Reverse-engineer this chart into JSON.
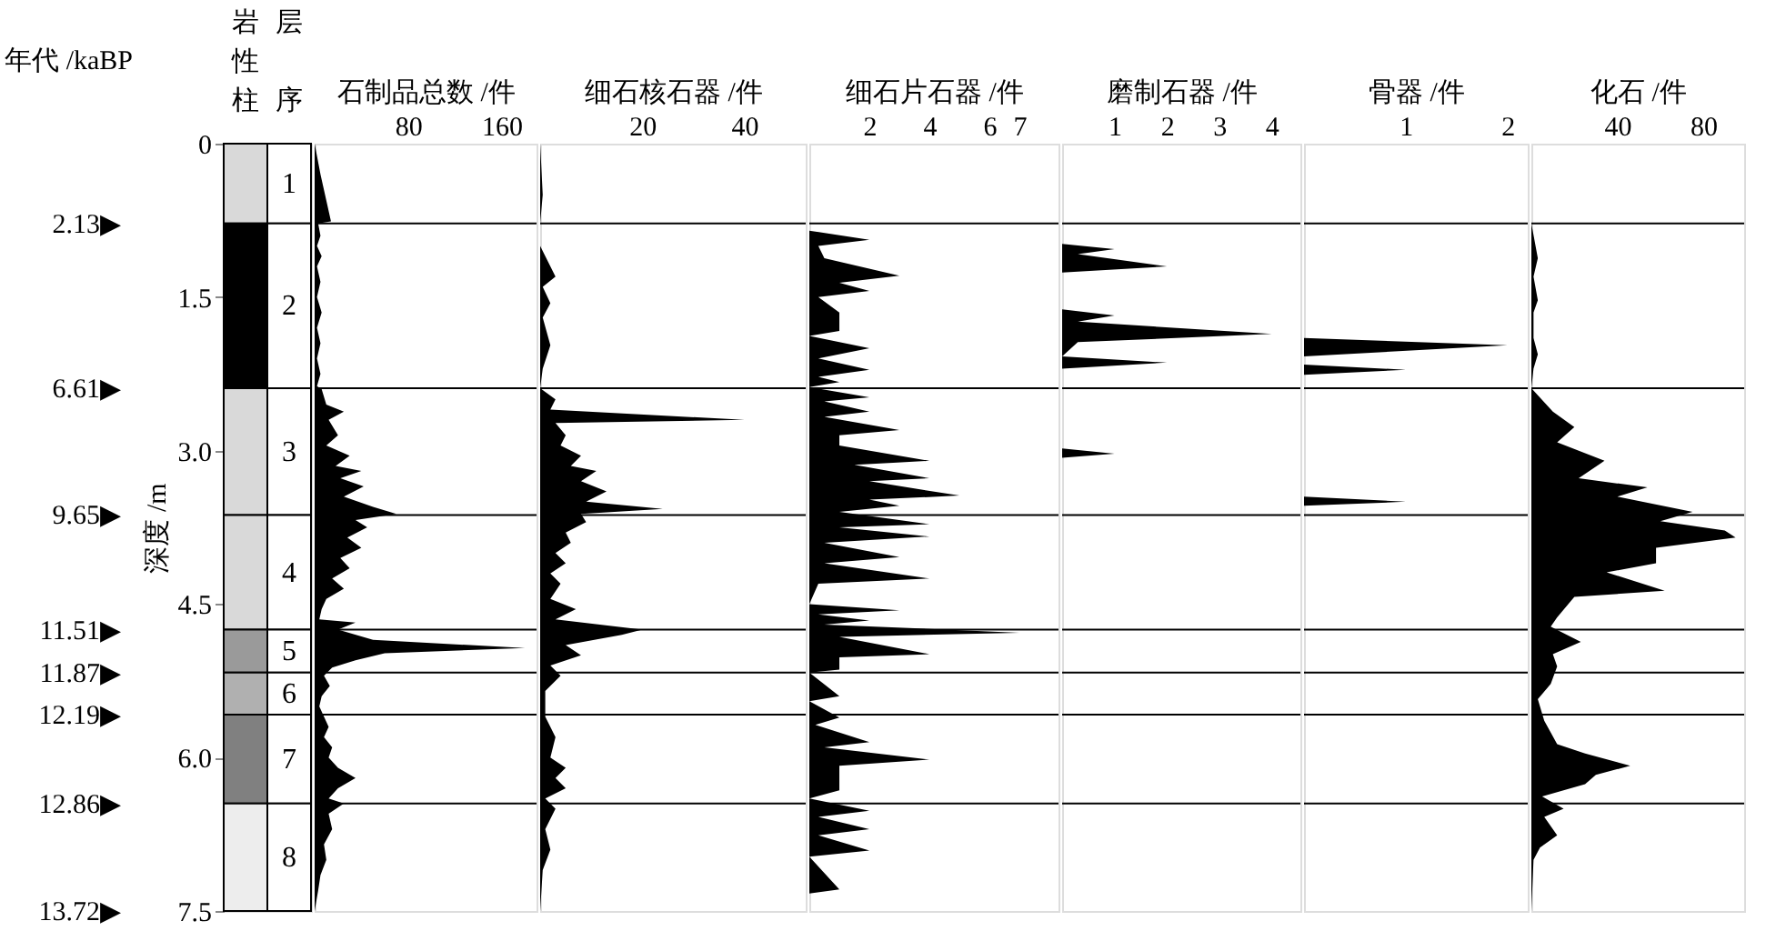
{
  "chart_data": [
    {
      "type": "bar",
      "stacked": true,
      "categories": [
        "岩性柱",
        "层序"
      ],
      "ylabel": "深度 /m",
      "ylim": [
        7.5,
        0
      ],
      "yticks": [
        0,
        1.5,
        {
          "value": 3,
          "label": "3.0"
        },
        4.5,
        {
          "value": 6,
          "label": "6.0"
        },
        7.5
      ],
      "tick_labels": "y",
      "series": [
        {
          "name": "1",
          "colors": [
            "#d9d9d9",
            "#ffffff"
          ],
          "values": [
            0.78,
            0.78
          ]
        },
        {
          "name": "2",
          "colors": [
            "#000000",
            "#ffffff"
          ],
          "values": [
            1.61,
            1.61
          ]
        },
        {
          "name": "3",
          "colors": [
            "#d9d9d9",
            "#ffffff"
          ],
          "values": [
            1.24,
            1.24
          ]
        },
        {
          "name": "4",
          "colors": [
            "#d9d9d9",
            "#ffffff"
          ],
          "values": [
            1.12,
            1.12
          ]
        },
        {
          "name": "5",
          "colors": [
            "#9a9a9a",
            "#ffffff"
          ],
          "values": [
            0.42,
            0.42
          ]
        },
        {
          "name": "6",
          "colors": [
            "#b0b0b0",
            "#ffffff"
          ],
          "values": [
            0.41,
            0.41
          ]
        },
        {
          "name": "7",
          "colors": [
            "#808080",
            "#ffffff"
          ],
          "values": [
            0.87,
            0.87
          ]
        },
        {
          "name": "8",
          "colors": [
            "#ededed",
            "#ffffff"
          ],
          "values": [
            1.05,
            1.05
          ]
        }
      ],
      "annotations": [
        "年代 /kaBP",
        "2.13▶",
        "6.61▶",
        "9.65▶",
        "11.51▶",
        "11.87▶",
        "12.19▶",
        "12.86▶",
        "13.72▶"
      ]
    },
    {
      "type": "area",
      "orientation": "horizontal",
      "xlabel": "石制品总数 /件",
      "color": "#000000",
      "xlim": [
        0,
        190
      ],
      "xticks": [
        80,
        160
      ],
      "ylim": [
        7.5,
        0
      ],
      "tick_labels": "x",
      "ref_lines": [
        {
          "axis": "y",
          "value": 0.78
        },
        {
          "axis": "y",
          "value": 2.39
        },
        {
          "axis": "y",
          "value": 3.63
        },
        {
          "axis": "y",
          "value": 4.75
        },
        {
          "axis": "y",
          "value": 5.17
        },
        {
          "axis": "y",
          "value": 5.58
        },
        {
          "axis": "y",
          "value": 6.45
        }
      ],
      "x": [
        0,
        0.3,
        0.76,
        0.78,
        0.9,
        1.0,
        1.1,
        1.2,
        1.35,
        1.5,
        1.65,
        1.8,
        1.95,
        2.1,
        2.25,
        2.37,
        2.4,
        2.55,
        2.62,
        2.7,
        2.85,
        2.95,
        3.05,
        3.15,
        3.2,
        3.27,
        3.35,
        3.45,
        3.55,
        3.62,
        3.68,
        3.75,
        3.85,
        3.95,
        4.05,
        4.15,
        4.25,
        4.35,
        4.45,
        4.55,
        4.65,
        4.68,
        4.75,
        4.85,
        4.93,
        4.98,
        5.05,
        5.12,
        5.2,
        5.3,
        5.4,
        5.5,
        5.6,
        5.7,
        5.8,
        5.9,
        6.0,
        6.1,
        6.2,
        6.3,
        6.4,
        6.45,
        6.55,
        6.7,
        6.85,
        7.0,
        7.15,
        7.3,
        7.5
      ],
      "values": [
        0,
        5,
        14,
        3,
        5,
        2,
        6,
        2,
        5,
        2,
        6,
        2,
        5,
        2,
        5,
        2,
        6,
        10,
        25,
        12,
        20,
        10,
        30,
        18,
        40,
        22,
        42,
        25,
        50,
        70,
        35,
        45,
        28,
        40,
        22,
        30,
        15,
        25,
        10,
        6,
        4,
        35,
        20,
        50,
        180,
        60,
        35,
        15,
        8,
        13,
        6,
        4,
        8,
        12,
        8,
        15,
        12,
        20,
        35,
        20,
        12,
        25,
        12,
        15,
        8,
        10,
        5,
        3,
        0
      ]
    },
    {
      "type": "area",
      "orientation": "horizontal",
      "xlabel": "细石核石器 /件",
      "color": "#000000",
      "xlim": [
        0,
        52
      ],
      "xticks": [
        20,
        40
      ],
      "ylim": [
        7.5,
        0
      ],
      "tick_labels": "x",
      "ref_lines": [
        {
          "axis": "y",
          "value": 0.78
        },
        {
          "axis": "y",
          "value": 2.39
        },
        {
          "axis": "y",
          "value": 3.63
        },
        {
          "axis": "y",
          "value": 4.75
        },
        {
          "axis": "y",
          "value": 5.17
        },
        {
          "axis": "y",
          "value": 5.58
        },
        {
          "axis": "y",
          "value": 6.45
        }
      ],
      "x": [
        0,
        0.5,
        0.78,
        1.0,
        1.3,
        1.4,
        1.56,
        1.7,
        1.97,
        2.2,
        2.39,
        2.5,
        2.6,
        2.7,
        2.73,
        2.85,
        2.95,
        3.05,
        3.15,
        3.2,
        3.3,
        3.4,
        3.5,
        3.57,
        3.62,
        3.7,
        3.8,
        3.9,
        4.0,
        4.1,
        4.2,
        4.3,
        4.45,
        4.55,
        4.65,
        4.75,
        4.8,
        4.9,
        5.0,
        5.1,
        5.2,
        5.35,
        5.5,
        5.6,
        5.8,
        6.0,
        6.1,
        6.2,
        6.3,
        6.4,
        6.5,
        6.7,
        6.9,
        7.1,
        7.5
      ],
      "values": [
        0,
        0.5,
        0,
        0,
        3,
        0.5,
        2,
        0.5,
        2,
        0.5,
        0,
        3,
        2,
        40,
        3,
        5,
        4,
        8,
        6,
        11,
        8,
        13,
        9,
        24,
        8,
        9,
        5,
        6,
        3,
        5,
        2,
        4,
        2,
        7,
        3,
        20,
        16,
        5,
        8,
        2,
        4,
        1,
        1,
        1,
        3,
        2,
        5,
        3,
        5,
        1,
        3,
        1,
        2,
        0.5,
        0
      ]
    },
    {
      "type": "area",
      "orientation": "horizontal",
      "xlabel": "细石片石器 /件",
      "color": "#000000",
      "xlim": [
        0,
        8.3
      ],
      "xticks": [
        2,
        4,
        6,
        7
      ],
      "ylim": [
        7.5,
        0
      ],
      "tick_labels": "x",
      "ref_lines": [
        {
          "axis": "y",
          "value": 0.78
        },
        {
          "axis": "y",
          "value": 2.39
        },
        {
          "axis": "y",
          "value": 3.63
        },
        {
          "axis": "y",
          "value": 4.75
        },
        {
          "axis": "y",
          "value": 5.17
        },
        {
          "axis": "y",
          "value": 5.58
        },
        {
          "axis": "y",
          "value": 6.45
        }
      ],
      "x": [
        0,
        0.85,
        0.94,
        1.0,
        1.12,
        1.29,
        1.36,
        1.44,
        1.5,
        1.65,
        1.83,
        1.88,
        2.0,
        2.1,
        2.21,
        2.28,
        2.33,
        2.38,
        2.48,
        2.52,
        2.62,
        2.67,
        2.8,
        2.85,
        2.95,
        3.1,
        3.14,
        3.27,
        3.3,
        3.44,
        3.48,
        3.54,
        3.6,
        3.72,
        3.75,
        3.84,
        3.9,
        4.04,
        4.1,
        4.25,
        4.3,
        4.5,
        4.56,
        4.6,
        4.66,
        4.7,
        4.78,
        4.82,
        4.99,
        5.02,
        5.05,
        5.14,
        5.17,
        5.4,
        5.45,
        5.61,
        5.68,
        5.85,
        5.9,
        6.02,
        6.08,
        6.15,
        6.23,
        6.32,
        6.4,
        6.52,
        6.58,
        6.7,
        6.76,
        6.91,
        6.97,
        7.29,
        7.33,
        7.5
      ],
      "values": [
        0,
        0,
        2,
        0.3,
        0.5,
        3,
        1,
        2,
        0.3,
        1,
        1,
        0,
        2,
        0.3,
        2,
        0.3,
        1,
        0,
        2,
        0.5,
        2,
        0.5,
        3,
        1,
        1,
        4,
        1.5,
        4,
        2,
        5,
        2,
        3,
        1,
        4,
        1,
        4,
        0.5,
        3,
        0.5,
        4,
        0.3,
        0,
        3,
        0.3,
        2,
        0.5,
        7,
        1,
        4,
        1,
        1,
        1,
        0,
        1,
        0,
        1,
        0.2,
        2,
        0.5,
        4,
        1,
        1,
        1,
        1,
        0,
        2,
        0.3,
        2,
        0.3,
        2,
        0,
        1,
        0,
        0
      ]
    },
    {
      "type": "area",
      "orientation": "horizontal",
      "xlabel": "磨制石器 /件",
      "color": "#000000",
      "xlim": [
        0,
        4.55
      ],
      "xticks": [
        1,
        2,
        3,
        4
      ],
      "ylim": [
        7.5,
        0
      ],
      "tick_labels": "x",
      "ref_lines": [
        {
          "axis": "y",
          "value": 0.78
        },
        {
          "axis": "y",
          "value": 2.39
        },
        {
          "axis": "y",
          "value": 3.63
        },
        {
          "axis": "y",
          "value": 4.75
        },
        {
          "axis": "y",
          "value": 5.17
        },
        {
          "axis": "y",
          "value": 5.58
        },
        {
          "axis": "y",
          "value": 6.45
        }
      ],
      "x": [
        0,
        0.98,
        1.03,
        1.08,
        1.2,
        1.26,
        1.62,
        1.68,
        1.74,
        1.86,
        1.94,
        2.08,
        2.14,
        2.2,
        2.98,
        3.03,
        3.07,
        7.5
      ],
      "values": [
        0,
        0,
        1,
        0.3,
        2,
        0,
        0,
        1,
        0.3,
        4,
        0.3,
        0,
        2,
        0,
        0,
        1,
        0,
        0
      ]
    },
    {
      "type": "area",
      "orientation": "horizontal",
      "xlabel": "骨器 /件",
      "color": "#000000",
      "xlim": [
        0,
        2.2
      ],
      "xticks": [
        1,
        2
      ],
      "ylim": [
        7.5,
        0
      ],
      "tick_labels": "x",
      "ref_lines": [
        {
          "axis": "y",
          "value": 0.78
        },
        {
          "axis": "y",
          "value": 2.39
        },
        {
          "axis": "y",
          "value": 3.63
        },
        {
          "axis": "y",
          "value": 4.75
        },
        {
          "axis": "y",
          "value": 5.17
        },
        {
          "axis": "y",
          "value": 5.58
        },
        {
          "axis": "y",
          "value": 6.45
        }
      ],
      "x": [
        0,
        1.9,
        1.97,
        2.08,
        2.16,
        2.21,
        2.26,
        3.45,
        3.5,
        3.54,
        7.5
      ],
      "values": [
        0,
        0,
        2,
        0,
        0,
        1,
        0,
        0,
        1,
        0,
        0
      ]
    },
    {
      "type": "area",
      "orientation": "horizontal",
      "xlabel": "化石 /件",
      "color": "#000000",
      "xlim": [
        0,
        99
      ],
      "xticks": [
        40,
        80
      ],
      "ylim": [
        7.5,
        0
      ],
      "tick_labels": "x",
      "ref_lines": [
        {
          "axis": "y",
          "value": 0.78
        },
        {
          "axis": "y",
          "value": 2.39
        },
        {
          "axis": "y",
          "value": 3.63
        },
        {
          "axis": "y",
          "value": 4.75
        },
        {
          "axis": "y",
          "value": 5.17
        },
        {
          "axis": "y",
          "value": 5.58
        },
        {
          "axis": "y",
          "value": 6.45
        }
      ],
      "x": [
        0,
        0.78,
        1.12,
        1.3,
        1.53,
        1.65,
        1.8,
        1.9,
        2.06,
        2.2,
        2.39,
        2.62,
        2.77,
        2.92,
        3.1,
        3.27,
        3.36,
        3.45,
        3.6,
        3.69,
        3.78,
        3.85,
        3.95,
        4.1,
        4.19,
        4.37,
        4.43,
        4.63,
        4.72,
        4.87,
        4.99,
        5.11,
        5.28,
        5.43,
        5.64,
        5.87,
        5.96,
        6.08,
        6.17,
        6.26,
        6.38,
        6.5,
        6.58,
        6.76,
        6.88,
        7.0,
        7.5
      ],
      "values": [
        0,
        0,
        3,
        1,
        3,
        1,
        1,
        1,
        3,
        1,
        0,
        10,
        20,
        12,
        34,
        22,
        54,
        40,
        75,
        60,
        90,
        95,
        58,
        58,
        35,
        62,
        20,
        12,
        9,
        23,
        10,
        12,
        9,
        3,
        6,
        12,
        25,
        46,
        30,
        25,
        5,
        15,
        6,
        12,
        4,
        1,
        0
      ]
    }
  ]
}
